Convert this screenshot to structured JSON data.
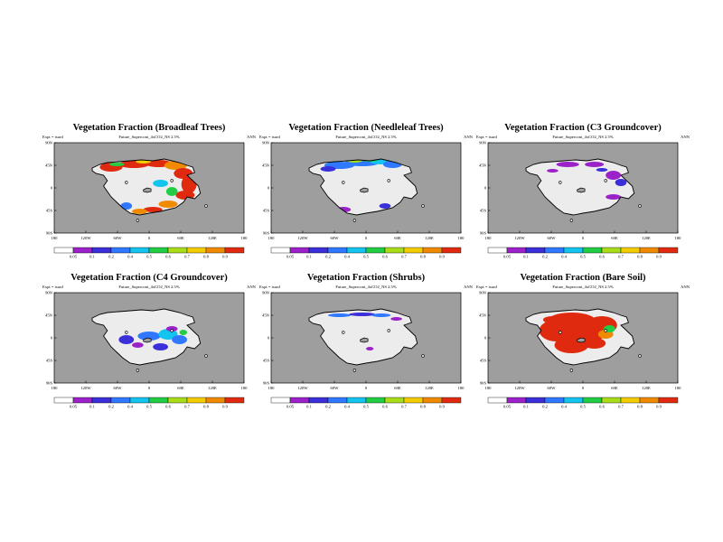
{
  "chart_data": [
    {
      "type": "heatmap",
      "title": "Vegetation Fraction (Broadleaf Trees)",
      "subtitle": "Future_Supercont_4xCO2_NS 2.5%",
      "expt_label": "Expt = tsurd",
      "season": "ANN",
      "x_ticks": [
        "180",
        "120W",
        "60W",
        "0",
        "60E",
        "120E",
        "180"
      ],
      "y_ticks": [
        "90N",
        "45N",
        "0",
        "45S",
        "90S"
      ],
      "colorbar_ticks": [
        "0.05",
        "0.1",
        "0.2",
        "0.4",
        "0.5",
        "0.6",
        "0.7",
        "0.8",
        "0.9"
      ],
      "colorbar_colors": [
        "#ffffff",
        "#9b22c8",
        "#3a2fd8",
        "#2f78ff",
        "#12c4ee",
        "#22cc44",
        "#a8dc19",
        "#f0cc00",
        "#f08a00",
        "#e02a10"
      ],
      "ocean_color": "#9e9e9e",
      "land_color": "#ececec",
      "dominant_level": "0.9",
      "dominant_region": "northern and eastern land margins"
    },
    {
      "type": "heatmap",
      "title": "Vegetation Fraction (Needleleaf Trees)",
      "subtitle": "Future_Supercont_4xCO2_NS 2.5%",
      "expt_label": "Expt = tsurd",
      "season": "ANN",
      "x_ticks": [
        "180",
        "120W",
        "60W",
        "0",
        "60E",
        "120E",
        "180"
      ],
      "y_ticks": [
        "90N",
        "45N",
        "0",
        "45S",
        "90S"
      ],
      "colorbar_ticks": [
        "0.05",
        "0.1",
        "0.2",
        "0.4",
        "0.5",
        "0.6",
        "0.7",
        "0.8",
        "0.9"
      ],
      "colorbar_colors": [
        "#ffffff",
        "#9b22c8",
        "#3a2fd8",
        "#2f78ff",
        "#12c4ee",
        "#22cc44",
        "#a8dc19",
        "#f0cc00",
        "#f08a00",
        "#e02a10"
      ],
      "ocean_color": "#9e9e9e",
      "land_color": "#ececec",
      "dominant_level": "0.4",
      "dominant_region": "northern high-latitude belt"
    },
    {
      "type": "heatmap",
      "title": "Vegetation Fraction (C3 Groundcover)",
      "subtitle": "Future_Supercont_4xCO2_NS 2.5%",
      "expt_label": "Expt = tsurd",
      "season": "ANN",
      "x_ticks": [
        "180",
        "120W",
        "60W",
        "0",
        "60E",
        "120E",
        "180"
      ],
      "y_ticks": [
        "90N",
        "45N",
        "0",
        "45S",
        "90S"
      ],
      "colorbar_ticks": [
        "0.05",
        "0.1",
        "0.2",
        "0.4",
        "0.5",
        "0.6",
        "0.7",
        "0.8",
        "0.9"
      ],
      "colorbar_colors": [
        "#ffffff",
        "#9b22c8",
        "#3a2fd8",
        "#2f78ff",
        "#12c4ee",
        "#22cc44",
        "#a8dc19",
        "#f0cc00",
        "#f08a00",
        "#e02a10"
      ],
      "ocean_color": "#9e9e9e",
      "land_color": "#ececec",
      "dominant_level": "0.1",
      "dominant_region": "northern belt and eastern margin"
    },
    {
      "type": "heatmap",
      "title": "Vegetation Fraction (C4 Groundcover)",
      "subtitle": "Future_Supercont_4xCO2_NS 2.5%",
      "expt_label": "Expt = tsurd",
      "season": "ANN",
      "x_ticks": [
        "180",
        "120W",
        "60W",
        "0",
        "60E",
        "120E",
        "180"
      ],
      "y_ticks": [
        "90N",
        "45N",
        "0",
        "45S",
        "90S"
      ],
      "colorbar_ticks": [
        "0.05",
        "0.1",
        "0.2",
        "0.4",
        "0.5",
        "0.6",
        "0.7",
        "0.8",
        "0.9"
      ],
      "colorbar_colors": [
        "#ffffff",
        "#9b22c8",
        "#3a2fd8",
        "#2f78ff",
        "#12c4ee",
        "#22cc44",
        "#a8dc19",
        "#f0cc00",
        "#f08a00",
        "#e02a10"
      ],
      "ocean_color": "#9e9e9e",
      "land_color": "#ececec",
      "dominant_level": "0.2",
      "dominant_region": "tropical southeastern land"
    },
    {
      "type": "heatmap",
      "title": "Vegetation Fraction (Shrubs)",
      "subtitle": "Future_Supercont_4xCO2_NS 2.5%",
      "expt_label": "Expt = tsurd",
      "season": "ANN",
      "x_ticks": [
        "180",
        "120W",
        "60W",
        "0",
        "60E",
        "120E",
        "180"
      ],
      "y_ticks": [
        "90N",
        "45N",
        "0",
        "45S",
        "90S"
      ],
      "colorbar_ticks": [
        "0.05",
        "0.1",
        "0.2",
        "0.4",
        "0.5",
        "0.6",
        "0.7",
        "0.8",
        "0.9"
      ],
      "colorbar_colors": [
        "#ffffff",
        "#9b22c8",
        "#3a2fd8",
        "#2f78ff",
        "#12c4ee",
        "#22cc44",
        "#a8dc19",
        "#f0cc00",
        "#f08a00",
        "#e02a10"
      ],
      "ocean_color": "#9e9e9e",
      "land_color": "#ececec",
      "dominant_level": "0.2",
      "dominant_region": "narrow northern belt"
    },
    {
      "type": "heatmap",
      "title": "Vegetation Fraction (Bare Soil)",
      "subtitle": "Future_Supercont_4xCO2_NS 2.5%",
      "expt_label": "Expt = tsurd",
      "season": "ANN",
      "x_ticks": [
        "180",
        "120W",
        "60W",
        "0",
        "60E",
        "120E",
        "180"
      ],
      "y_ticks": [
        "90N",
        "45N",
        "0",
        "45S",
        "90S"
      ],
      "colorbar_ticks": [
        "0.05",
        "0.1",
        "0.2",
        "0.4",
        "0.5",
        "0.6",
        "0.7",
        "0.8",
        "0.9"
      ],
      "colorbar_colors": [
        "#ffffff",
        "#9b22c8",
        "#3a2fd8",
        "#2f78ff",
        "#12c4ee",
        "#22cc44",
        "#a8dc19",
        "#f0cc00",
        "#f08a00",
        "#e02a10"
      ],
      "ocean_color": "#9e9e9e",
      "land_color": "#ececec",
      "dominant_level": "0.9",
      "dominant_region": "continental interior"
    }
  ]
}
